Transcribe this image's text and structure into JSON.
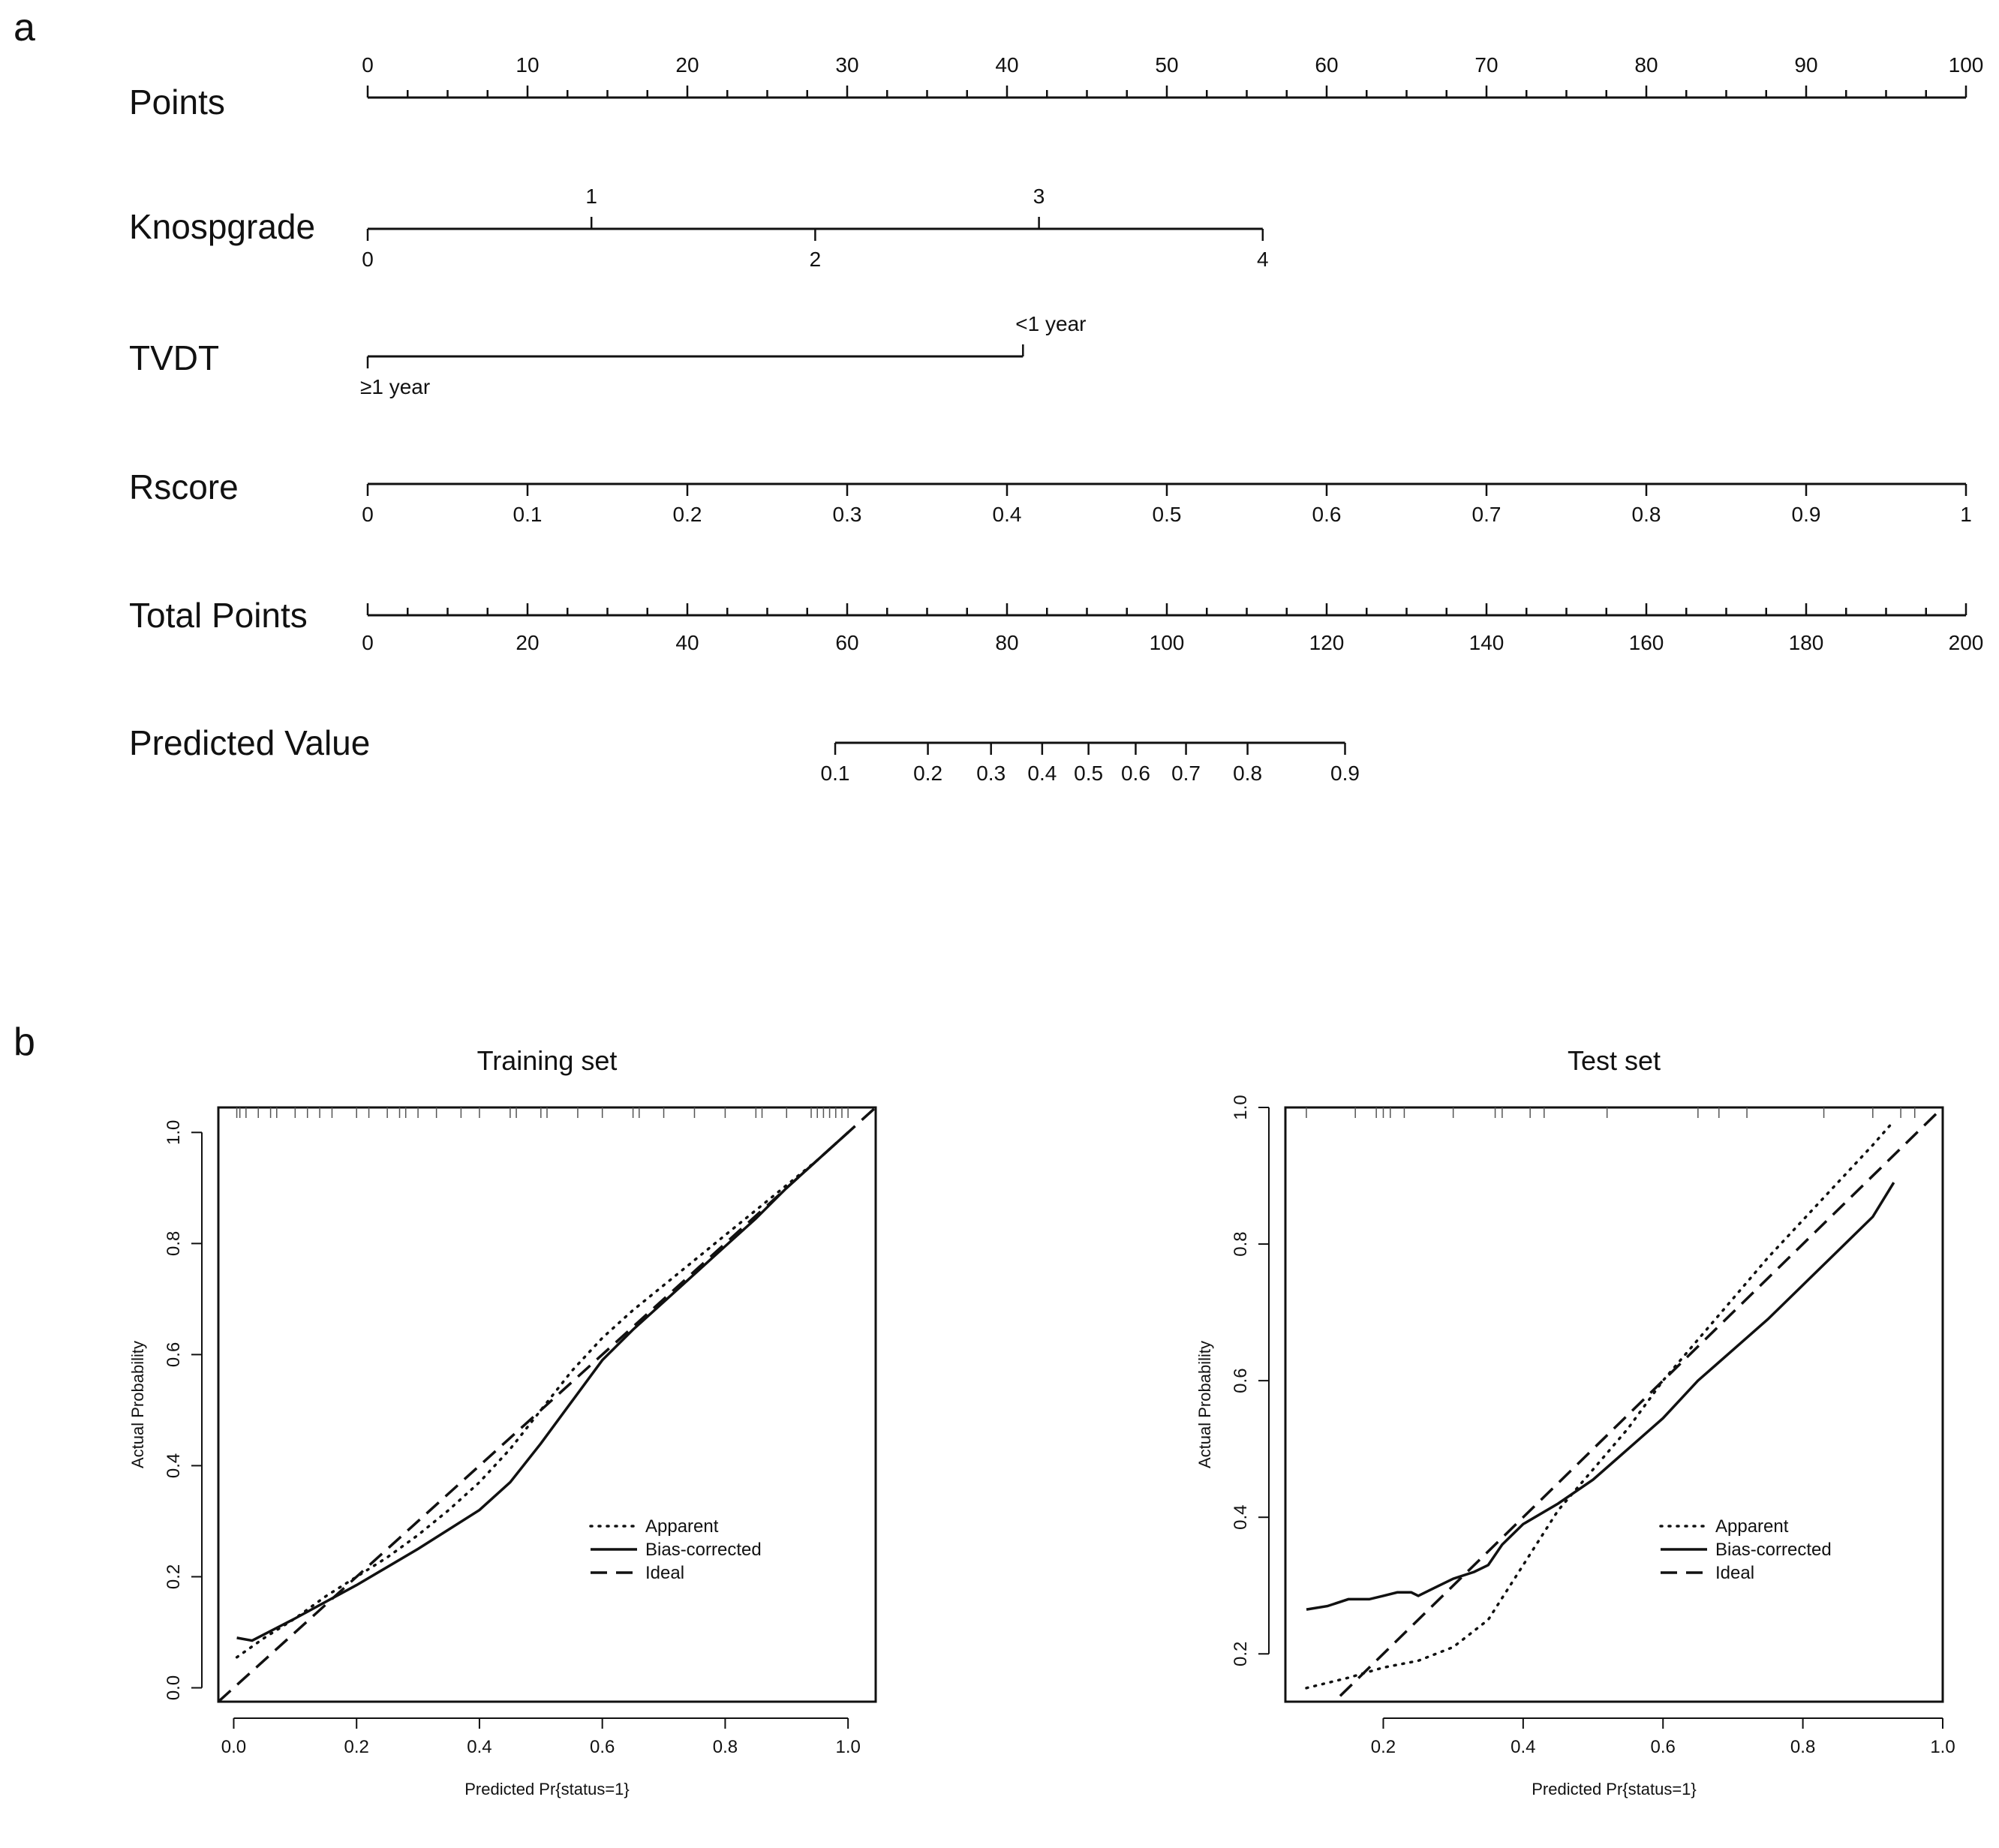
{
  "panels": {
    "a": "a",
    "b": "b"
  },
  "chart_data": [
    {
      "type": "nomogram",
      "rows": [
        {
          "name": "Points",
          "axis": [
            0,
            100
          ],
          "major": [
            0,
            10,
            20,
            30,
            40,
            50,
            60,
            70,
            80,
            90,
            100
          ],
          "minor_step": 2.5,
          "labels": [
            {
              "text": "0",
              "points": 0
            },
            {
              "text": "10",
              "points": 10
            },
            {
              "text": "20",
              "points": 20
            },
            {
              "text": "30",
              "points": 30
            },
            {
              "text": "40",
              "points": 40
            },
            {
              "text": "50",
              "points": 50
            },
            {
              "text": "60",
              "points": 60
            },
            {
              "text": "70",
              "points": 70
            },
            {
              "text": "80",
              "points": 80
            },
            {
              "text": "90",
              "points": 90
            },
            {
              "text": "100",
              "points": 100
            }
          ]
        },
        {
          "name": "Knospgrade",
          "range_points": [
            0,
            56
          ],
          "labels": [
            {
              "text": "0",
              "points": 0,
              "side": "below"
            },
            {
              "text": "1",
              "points": 14,
              "side": "above"
            },
            {
              "text": "2",
              "points": 28,
              "side": "below"
            },
            {
              "text": "3",
              "points": 42,
              "side": "above"
            },
            {
              "text": "4",
              "points": 56,
              "side": "below"
            }
          ]
        },
        {
          "name": "TVDT",
          "range_points": [
            0,
            41
          ],
          "labels": [
            {
              "text": "≥1 year",
              "points": 0,
              "side": "below"
            },
            {
              "text": "<1 year",
              "points": 41,
              "side": "above"
            }
          ]
        },
        {
          "name": "Rscore",
          "range_points": [
            0,
            100
          ],
          "labels": [
            {
              "text": "0",
              "points": 0
            },
            {
              "text": "0.1",
              "points": 10
            },
            {
              "text": "0.2",
              "points": 20
            },
            {
              "text": "0.3",
              "points": 30
            },
            {
              "text": "0.4",
              "points": 40
            },
            {
              "text": "0.5",
              "points": 50
            },
            {
              "text": "0.6",
              "points": 60
            },
            {
              "text": "0.7",
              "points": 70
            },
            {
              "text": "0.8",
              "points": 80
            },
            {
              "text": "0.9",
              "points": 90
            },
            {
              "text": "1",
              "points": 100
            }
          ]
        },
        {
          "name": "Total Points",
          "axis": [
            0,
            200
          ],
          "minor_step": 5,
          "labels": [
            {
              "text": "0",
              "total": 0
            },
            {
              "text": "20",
              "total": 20
            },
            {
              "text": "40",
              "total": 40
            },
            {
              "text": "60",
              "total": 60
            },
            {
              "text": "80",
              "total": 80
            },
            {
              "text": "100",
              "total": 100
            },
            {
              "text": "120",
              "total": 120
            },
            {
              "text": "140",
              "total": 140
            },
            {
              "text": "160",
              "total": 160
            },
            {
              "text": "180",
              "total": 180
            },
            {
              "text": "200",
              "total": 200
            }
          ]
        },
        {
          "name": "Predicted Value",
          "range_total": [
            58.5,
            122.3
          ],
          "labels": [
            {
              "text": "0.1",
              "total": 58.5
            },
            {
              "text": "0.2",
              "total": 70.1
            },
            {
              "text": "0.3",
              "total": 78
            },
            {
              "text": "0.4",
              "total": 84.4
            },
            {
              "text": "0.5",
              "total": 90.2
            },
            {
              "text": "0.6",
              "total": 96.1
            },
            {
              "text": "0.7",
              "total": 102.4
            },
            {
              "text": "0.8",
              "total": 110.1
            },
            {
              "text": "0.9",
              "total": 122.3
            }
          ]
        }
      ]
    },
    {
      "type": "line",
      "title": "Training set",
      "xlabel": "Predicted Pr{status=1}",
      "ylabel": "Actual Probability",
      "xlim": [
        -0.025,
        1.045
      ],
      "ylim": [
        -0.025,
        1.045
      ],
      "xticks": [
        "0.0",
        "0.2",
        "0.4",
        "0.6",
        "0.8",
        "1.0"
      ],
      "yticks": [
        "0.0",
        "0.2",
        "0.4",
        "0.6",
        "0.8",
        "1.0"
      ],
      "legend": {
        "position": "bottom-right",
        "entries": [
          "Apparent",
          "Bias-corrected",
          "Ideal"
        ]
      },
      "series": [
        {
          "name": "Apparent",
          "style": "dotted",
          "x": [
            0.005,
            0.05,
            0.1,
            0.15,
            0.2,
            0.25,
            0.3,
            0.35,
            0.4,
            0.45,
            0.5,
            0.55,
            0.6,
            0.65,
            0.7,
            0.75,
            0.8,
            0.85,
            0.9,
            0.95,
            1.0
          ],
          "y": [
            0.055,
            0.09,
            0.125,
            0.165,
            0.2,
            0.235,
            0.275,
            0.32,
            0.37,
            0.43,
            0.5,
            0.57,
            0.63,
            0.68,
            0.725,
            0.77,
            0.815,
            0.86,
            0.905,
            0.95,
            1.0
          ]
        },
        {
          "name": "Bias-corrected",
          "style": "solid",
          "x": [
            0.005,
            0.03,
            0.1,
            0.2,
            0.3,
            0.35,
            0.4,
            0.45,
            0.5,
            0.55,
            0.6,
            0.65,
            0.7,
            0.75,
            0.8,
            0.85,
            0.9,
            0.95,
            1.0
          ],
          "y": [
            0.09,
            0.085,
            0.125,
            0.185,
            0.25,
            0.285,
            0.32,
            0.37,
            0.44,
            0.515,
            0.59,
            0.645,
            0.695,
            0.745,
            0.795,
            0.845,
            0.9,
            0.95,
            1.0
          ]
        },
        {
          "name": "Ideal",
          "style": "dashed",
          "x": [
            -0.025,
            1.045
          ],
          "y": [
            -0.025,
            1.045
          ]
        }
      ],
      "rug": [
        0.005,
        0.01,
        0.02,
        0.04,
        0.06,
        0.07,
        0.1,
        0.12,
        0.14,
        0.16,
        0.2,
        0.22,
        0.25,
        0.27,
        0.28,
        0.3,
        0.33,
        0.37,
        0.4,
        0.45,
        0.46,
        0.5,
        0.51,
        0.56,
        0.6,
        0.65,
        0.66,
        0.7,
        0.75,
        0.8,
        0.85,
        0.86,
        0.9,
        0.94,
        0.95,
        0.96,
        0.97,
        0.98,
        0.99,
        1.0
      ]
    },
    {
      "type": "line",
      "title": "Test set",
      "xlabel": "Predicted Pr{status=1}",
      "ylabel": "Actual Probability",
      "xlim": [
        0.06,
        1.0
      ],
      "ylim": [
        0.13,
        1.0
      ],
      "xticks": [
        "0.2",
        "0.4",
        "0.6",
        "0.8",
        "1.0"
      ],
      "yticks": [
        "0.2",
        "0.4",
        "0.6",
        "0.8",
        "1.0"
      ],
      "legend": {
        "position": "bottom-right",
        "entries": [
          "Apparent",
          "Bias-corrected",
          "Ideal"
        ]
      },
      "series": [
        {
          "name": "Apparent",
          "style": "dotted",
          "x": [
            0.09,
            0.15,
            0.2,
            0.25,
            0.3,
            0.35,
            0.4,
            0.45,
            0.5,
            0.55,
            0.6,
            0.65,
            0.7,
            0.75,
            0.8,
            0.85,
            0.9,
            0.93
          ],
          "y": [
            0.15,
            0.165,
            0.18,
            0.19,
            0.21,
            0.25,
            0.33,
            0.41,
            0.47,
            0.53,
            0.6,
            0.66,
            0.72,
            0.78,
            0.835,
            0.89,
            0.945,
            0.98
          ]
        },
        {
          "name": "Bias-corrected",
          "style": "solid",
          "x": [
            0.09,
            0.12,
            0.15,
            0.18,
            0.2,
            0.22,
            0.24,
            0.25,
            0.28,
            0.3,
            0.33,
            0.35,
            0.37,
            0.4,
            0.45,
            0.5,
            0.55,
            0.6,
            0.65,
            0.7,
            0.75,
            0.8,
            0.85,
            0.9,
            0.93
          ],
          "y": [
            0.265,
            0.27,
            0.28,
            0.28,
            0.285,
            0.29,
            0.29,
            0.285,
            0.3,
            0.31,
            0.32,
            0.33,
            0.36,
            0.39,
            0.42,
            0.455,
            0.5,
            0.545,
            0.6,
            0.645,
            0.69,
            0.74,
            0.79,
            0.84,
            0.89
          ]
        },
        {
          "name": "Ideal",
          "style": "dashed",
          "x": [
            0.06,
            1.0
          ],
          "y": [
            0.06,
            1.0
          ]
        }
      ],
      "rug": [
        0.09,
        0.16,
        0.19,
        0.2,
        0.21,
        0.23,
        0.3,
        0.36,
        0.37,
        0.41,
        0.43,
        0.52,
        0.65,
        0.68,
        0.72,
        0.83,
        0.9,
        0.94,
        0.96
      ]
    }
  ]
}
